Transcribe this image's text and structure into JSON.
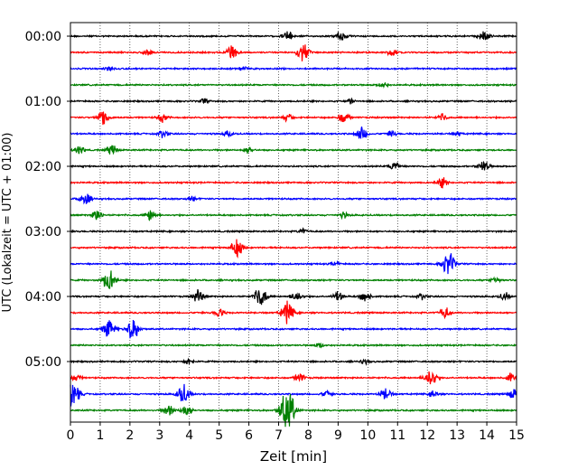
{
  "chart_data": {
    "type": "line",
    "title": "",
    "xlabel": "Zeit  [min]",
    "ylabel": "UTC (Lokalzeit = UTC + 01:00)",
    "xlim": [
      0,
      15
    ],
    "x_ticks": [
      0,
      1,
      2,
      3,
      4,
      5,
      6,
      7,
      8,
      9,
      10,
      11,
      12,
      13,
      14,
      15
    ],
    "y_tick_labels": [
      "00:00",
      "01:00",
      "02:00",
      "03:00",
      "04:00",
      "05:00"
    ],
    "y_tick_rows": [
      0,
      4,
      8,
      12,
      16,
      20
    ],
    "row_minutes": 15,
    "grid": {
      "x": true,
      "style": "dotted"
    },
    "legend": "none",
    "colors": [
      "#000000",
      "#ff0000",
      "#0000ff",
      "#008000"
    ],
    "series": [
      {
        "start": "00:00",
        "events": [
          [
            7.3,
            0.45
          ],
          [
            9.1,
            0.5
          ],
          [
            13.9,
            0.5
          ]
        ]
      },
      {
        "start": "00:15",
        "events": [
          [
            2.6,
            0.25
          ],
          [
            5.4,
            0.6
          ],
          [
            7.8,
            0.8
          ],
          [
            10.8,
            0.3
          ]
        ]
      },
      {
        "start": "00:30",
        "events": [
          [
            1.3,
            0.2
          ],
          [
            5.8,
            0.2
          ]
        ]
      },
      {
        "start": "00:45",
        "events": [
          [
            10.5,
            0.25
          ]
        ]
      },
      {
        "start": "01:00",
        "events": [
          [
            4.5,
            0.2
          ],
          [
            9.4,
            0.2
          ]
        ]
      },
      {
        "start": "01:15",
        "events": [
          [
            1.1,
            0.75
          ],
          [
            3.1,
            0.4
          ],
          [
            7.3,
            0.3
          ],
          [
            9.2,
            0.5
          ],
          [
            12.5,
            0.3
          ]
        ]
      },
      {
        "start": "01:30",
        "events": [
          [
            3.1,
            0.3
          ],
          [
            5.3,
            0.25
          ],
          [
            9.8,
            0.6
          ],
          [
            10.8,
            0.25
          ],
          [
            13,
            0.2
          ]
        ]
      },
      {
        "start": "01:45",
        "events": [
          [
            0.3,
            0.35
          ],
          [
            1.4,
            0.45
          ],
          [
            6,
            0.3
          ]
        ]
      },
      {
        "start": "02:00",
        "events": [
          [
            10.9,
            0.45
          ],
          [
            13.9,
            0.55
          ]
        ]
      },
      {
        "start": "02:15",
        "events": [
          [
            12.5,
            0.45
          ]
        ]
      },
      {
        "start": "02:30",
        "events": [
          [
            0.5,
            0.6
          ],
          [
            4.1,
            0.2
          ]
        ]
      },
      {
        "start": "02:45",
        "events": [
          [
            0.9,
            0.5
          ],
          [
            2.7,
            0.55
          ],
          [
            9.2,
            0.25
          ]
        ]
      },
      {
        "start": "03:00",
        "events": [
          [
            7.8,
            0.2
          ]
        ]
      },
      {
        "start": "03:15",
        "events": [
          [
            5.6,
            0.8
          ]
        ]
      },
      {
        "start": "03:30",
        "events": [
          [
            8.9,
            0.2
          ],
          [
            12.7,
            1.0
          ]
        ]
      },
      {
        "start": "03:45",
        "events": [
          [
            1.3,
            0.95
          ],
          [
            14.3,
            0.3
          ]
        ]
      },
      {
        "start": "04:00",
        "events": [
          [
            4.3,
            0.6
          ],
          [
            6.4,
            0.9
          ],
          [
            7.6,
            0.5
          ],
          [
            9,
            0.45
          ],
          [
            9.9,
            0.5
          ],
          [
            11.8,
            0.25
          ],
          [
            14.6,
            0.35
          ]
        ]
      },
      {
        "start": "04:15",
        "events": [
          [
            5,
            0.4
          ],
          [
            7.3,
            0.95
          ],
          [
            12.6,
            0.5
          ]
        ]
      },
      {
        "start": "04:30",
        "events": [
          [
            1.3,
            0.8
          ],
          [
            2.1,
            0.95
          ]
        ]
      },
      {
        "start": "04:45",
        "events": [
          [
            8.4,
            0.2
          ]
        ]
      },
      {
        "start": "05:00",
        "events": [
          [
            4,
            0.3
          ],
          [
            9.9,
            0.2
          ]
        ]
      },
      {
        "start": "05:15",
        "events": [
          [
            0.2,
            0.3
          ],
          [
            7.7,
            0.4
          ],
          [
            12.1,
            0.85
          ],
          [
            14.8,
            0.35
          ]
        ]
      },
      {
        "start": "05:30",
        "events": [
          [
            0.05,
            1.3
          ],
          [
            3.8,
            0.85
          ],
          [
            8.6,
            0.3
          ],
          [
            10.6,
            0.55
          ],
          [
            12.2,
            0.3
          ],
          [
            14.9,
            0.45
          ]
        ]
      },
      {
        "start": "05:45",
        "events": [
          [
            3.3,
            0.5
          ],
          [
            3.9,
            0.55
          ],
          [
            7.2,
            0.9
          ],
          [
            7.35,
            1.2
          ]
        ]
      }
    ]
  }
}
